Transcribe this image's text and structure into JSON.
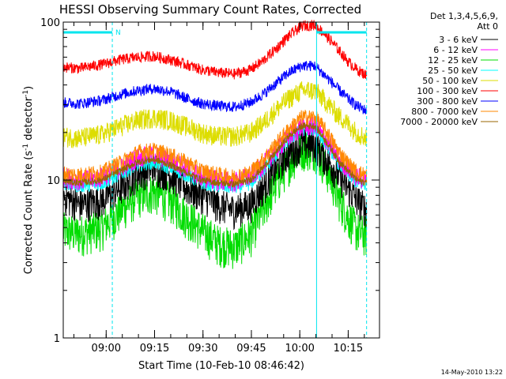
{
  "chart_data": {
    "type": "line",
    "title": "HESSI Observing Summary Count Rates, Corrected",
    "xlabel": "Start Time (10-Feb-10 08:46:42)",
    "ylabel_main": "Corrected Count Rate (s",
    "ylabel_sup1": "-1",
    "ylabel_mid": " detector",
    "ylabel_sup2": "-1",
    "ylabel_end": ")",
    "yscale": "log",
    "ylim": [
      1,
      100
    ],
    "xlim_minutes": [
      0,
      98
    ],
    "y_ticks": [
      {
        "value": 1,
        "label": "1"
      },
      {
        "value": 10,
        "label": "10"
      },
      {
        "value": 100,
        "label": "100"
      }
    ],
    "x_ticks": [
      {
        "minute": 13.3,
        "label": "09:00"
      },
      {
        "minute": 28.3,
        "label": "09:15"
      },
      {
        "minute": 43.3,
        "label": "09:30"
      },
      {
        "minute": 58.3,
        "label": "09:45"
      },
      {
        "minute": 73.3,
        "label": "10:00"
      },
      {
        "minute": 88.3,
        "label": "10:15"
      }
    ],
    "legend_header": [
      "Det 1,3,4,5,6,9,",
      "Att 0"
    ],
    "legend_position": "right",
    "series": [
      {
        "name": "3 - 6 keV",
        "color": "#000000",
        "noise": 0.25,
        "x": [
          0,
          5,
          12,
          18,
          23,
          28,
          33,
          38,
          43,
          48,
          53,
          58,
          62,
          66,
          70,
          74,
          78,
          81,
          85,
          88,
          91,
          94
        ],
        "values": [
          8,
          7,
          7.5,
          9,
          11,
          12,
          11,
          9,
          8,
          7,
          6.5,
          7,
          9,
          12,
          15,
          17,
          17,
          14,
          11,
          9,
          7.5,
          6.5
        ]
      },
      {
        "name": "6 - 12 keV",
        "color": "#ff00ff",
        "noise": 0.15,
        "x": [
          0,
          5,
          12,
          18,
          23,
          28,
          33,
          38,
          43,
          48,
          53,
          58,
          62,
          66,
          70,
          74,
          78,
          81,
          85,
          88,
          91,
          94
        ],
        "values": [
          10.5,
          10,
          10.5,
          12,
          14,
          14.5,
          13.5,
          12,
          10.5,
          10,
          9.8,
          10.5,
          12.5,
          15.5,
          19,
          22,
          22,
          18.5,
          14,
          12,
          10.5,
          10
        ]
      },
      {
        "name": "12 - 25 keV",
        "color": "#00dd00",
        "noise": 0.3,
        "x": [
          0,
          5,
          12,
          18,
          23,
          28,
          33,
          38,
          43,
          48,
          53,
          58,
          62,
          66,
          70,
          74,
          78,
          81,
          85,
          88,
          91,
          94
        ],
        "values": [
          4.8,
          4.6,
          5,
          6.5,
          8,
          8.5,
          7.5,
          6,
          4.8,
          4,
          3.8,
          4.5,
          6.5,
          9.5,
          13,
          16,
          16,
          12.5,
          8,
          6,
          4.8,
          4.5
        ]
      },
      {
        "name": "25 - 50 keV",
        "color": "#00ffff",
        "noise": 0.1,
        "x": [
          0,
          5,
          12,
          18,
          23,
          28,
          33,
          38,
          43,
          48,
          53,
          58,
          62,
          66,
          70,
          74,
          78,
          81,
          85,
          88,
          91,
          94
        ],
        "values": [
          9.5,
          9.2,
          9.5,
          11,
          12.5,
          13,
          12,
          10.8,
          9.6,
          9.2,
          9,
          9.5,
          11.5,
          14.5,
          18,
          21,
          21,
          17.5,
          13,
          11,
          9.6,
          9.2
        ]
      },
      {
        "name": "50 - 100 keV",
        "color": "#dddd00",
        "noise": 0.15,
        "x": [
          0,
          5,
          12,
          18,
          23,
          28,
          33,
          38,
          43,
          48,
          53,
          58,
          62,
          66,
          70,
          74,
          78,
          81,
          85,
          88,
          91,
          94
        ],
        "values": [
          19,
          18.5,
          19.5,
          22,
          24,
          25,
          24,
          22,
          20,
          19,
          19,
          20,
          23,
          28,
          33,
          37,
          37,
          32,
          26,
          23,
          20,
          18.5
        ]
      },
      {
        "name": "100 - 300 keV",
        "color": "#ff0000",
        "noise": 0.08,
        "x": [
          0,
          5,
          12,
          18,
          23,
          28,
          33,
          38,
          43,
          48,
          53,
          58,
          62,
          66,
          70,
          74,
          78,
          81,
          85,
          88,
          91,
          94
        ],
        "values": [
          52,
          51,
          54,
          58,
          60,
          61,
          58,
          54,
          50,
          48,
          47,
          50,
          57,
          68,
          82,
          95,
          96,
          84,
          68,
          57,
          50,
          46
        ]
      },
      {
        "name": "300 - 800 keV",
        "color": "#0000ff",
        "noise": 0.08,
        "x": [
          0,
          5,
          12,
          18,
          23,
          28,
          33,
          38,
          43,
          48,
          53,
          58,
          62,
          66,
          70,
          74,
          78,
          81,
          85,
          88,
          91,
          94
        ],
        "values": [
          31,
          30.5,
          32,
          35,
          37,
          38,
          36.5,
          33,
          30.5,
          29.5,
          29,
          31,
          35,
          41,
          48,
          53,
          53,
          46,
          38,
          33,
          29.5,
          27.5
        ]
      },
      {
        "name": "800 - 7000 keV",
        "color": "#ff8800",
        "noise": 0.12,
        "x": [
          0,
          5,
          12,
          18,
          23,
          28,
          33,
          38,
          43,
          48,
          53,
          58,
          62,
          66,
          70,
          74,
          78,
          81,
          85,
          88,
          91,
          94
        ],
        "values": [
          11,
          10.8,
          11.2,
          13,
          15,
          15.5,
          14.5,
          13,
          11.5,
          10.8,
          10.5,
          11.2,
          13.5,
          17,
          21,
          25,
          25,
          21,
          15.5,
          13,
          11.2,
          10.8
        ]
      },
      {
        "name": "7000 - 20000 keV",
        "color": "#996600",
        "noise": 0.05,
        "x": [
          0,
          5,
          12,
          18,
          23,
          28,
          33,
          38,
          43,
          48,
          53,
          58,
          62,
          66,
          70,
          74,
          78,
          81,
          85,
          88,
          91,
          94
        ],
        "values": [
          9.8,
          9.6,
          10,
          11.5,
          13,
          13.5,
          12.5,
          11.2,
          10,
          9.6,
          9.4,
          10,
          12,
          15,
          19,
          22,
          22,
          18,
          13.5,
          11.5,
          10,
          9.6
        ]
      }
    ],
    "night_markers": {
      "solid_lines_minutes": [
        0,
        78.5
      ],
      "dashed_lines_minutes": [
        15.2,
        94
      ],
      "top_bars_minutes": [
        [
          0,
          15.2
        ],
        [
          78.5,
          94
        ]
      ],
      "label": "N",
      "color": "#00e5ee"
    },
    "footer_date": "14-May-2010 13:22"
  }
}
